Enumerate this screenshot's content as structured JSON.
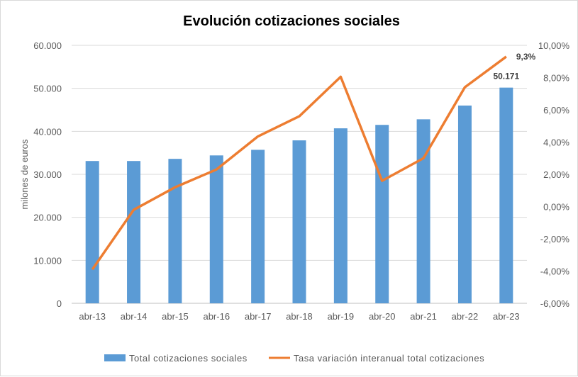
{
  "chart_data": {
    "type": "bar+line",
    "title": "Evolución cotizaciones sociales",
    "ylabel": "milones de euros",
    "categories": [
      "abr-13",
      "abr-14",
      "abr-15",
      "abr-16",
      "abr-17",
      "abr-18",
      "abr-19",
      "abr-20",
      "abr-21",
      "abr-22",
      "abr-23"
    ],
    "series": [
      {
        "name": "Total cotizaciones sociales",
        "type": "bar",
        "axis": "left",
        "color": "#5b9bd5",
        "values": [
          33100,
          33100,
          33600,
          34400,
          35700,
          37900,
          40700,
          41500,
          42800,
          46000,
          50171
        ]
      },
      {
        "name": "Tasa variación interanual total cotizaciones",
        "type": "line",
        "axis": "right",
        "color": "#ed7d31",
        "values": [
          -3.9,
          -0.2,
          1.2,
          2.3,
          4.35,
          5.6,
          8.05,
          1.6,
          3.0,
          7.4,
          9.3
        ]
      }
    ],
    "left_axis": {
      "ylim": [
        0,
        60000
      ],
      "ticks": [
        "0",
        "10.000",
        "20.000",
        "30.000",
        "40.000",
        "50.000",
        "60.000"
      ]
    },
    "right_axis": {
      "ylim": [
        -6,
        10
      ],
      "ticks": [
        "-6,00%",
        "-4,00%",
        "-2,00%",
        "0,00%",
        "2,00%",
        "4,00%",
        "6,00%",
        "8,00%",
        "10,00%"
      ]
    },
    "data_labels": {
      "bar_last": "50.171",
      "line_last": "9,3%"
    },
    "grid": true,
    "legend": "bottom"
  }
}
